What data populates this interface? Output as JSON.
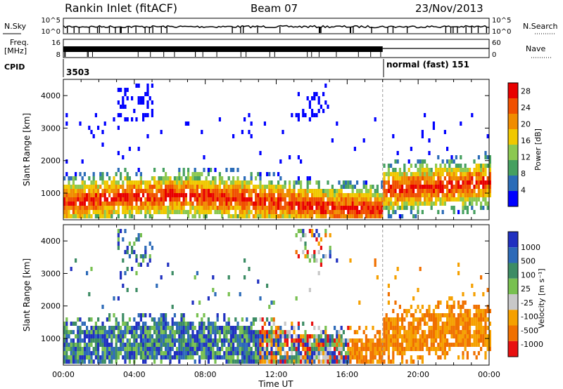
{
  "header": {
    "radar": "Rankin Inlet (fitACF)",
    "beam": "Beam 07",
    "date": "23/Nov/2013"
  },
  "status_panel": {
    "left_label": "N.Sky",
    "right_label": "N.Search",
    "left_ticks": [
      "10^5",
      "10^0"
    ],
    "right_ticks": [
      "10^5",
      "10^0"
    ]
  },
  "freq_panel": {
    "left_label_top": "Freq.",
    "left_label_unit": "[MHz]",
    "right_label": "Nave",
    "left_ticks": [
      "16",
      "8"
    ],
    "right_ticks": [
      "60",
      "0"
    ]
  },
  "cpid_panel": {
    "label": "CPID",
    "first_mode": "3503",
    "second_mode": "normal (fast) 151",
    "switch_time_hours": 18.0
  },
  "colors": {
    "power_scale": [
      "#0000ff",
      "#2b6cb8",
      "#46a060",
      "#8cc850",
      "#f0c800",
      "#f08c00",
      "#f05000",
      "#e80000"
    ],
    "velocity_scale": [
      "#2030c0",
      "#2d6ab8",
      "#3c8c64",
      "#78c050",
      "#c8c8c8",
      "#f5a000",
      "#f07000",
      "#e81010"
    ]
  },
  "chart_data": [
    {
      "type": "heatmap",
      "name": "power",
      "ylabel": "Slant Range [km]",
      "xlim_hours": [
        0,
        24
      ],
      "ylim_km": [
        180,
        4500
      ],
      "yticks": [
        "1000",
        "2000",
        "3000",
        "4000"
      ],
      "colorbar": {
        "label": "Power [dB]",
        "ticks": [
          "4",
          "8",
          "12",
          "16",
          "20",
          "24",
          "28"
        ],
        "range": [
          0,
          30
        ]
      }
    },
    {
      "type": "heatmap",
      "name": "velocity",
      "ylabel": "Slant Range [km]",
      "xlabel": "Time UT",
      "xlim_hours": [
        0,
        24
      ],
      "ylim_km": [
        180,
        4500
      ],
      "xticks": [
        "00:00",
        "04:00",
        "08:00",
        "12:00",
        "16:00",
        "20:00",
        "00:00"
      ],
      "yticks": [
        "1000",
        "2000",
        "3000",
        "4000"
      ],
      "colorbar": {
        "label": "Velocity [m s⁻¹]",
        "ticks": [
          "1000",
          "500",
          "100",
          "25",
          "-25",
          "-100",
          "-500",
          "-1000"
        ]
      }
    }
  ]
}
